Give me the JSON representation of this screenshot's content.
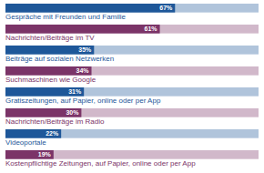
{
  "chart_data": {
    "type": "bar",
    "orientation": "horizontal",
    "categories": [
      "Gespräche mit Freunden und Familie",
      "Nachrichten/Beiträge im TV",
      "Beiträge auf sozialen Netzwerken",
      "Suchmaschinen wie Google",
      "Gratiszeitungen, auf Papier, online oder per App",
      "Nachrichten/Beiträge im Radio",
      "Videoportale",
      "Kostenpflichtige Zeitungen, auf Papier, online oder per App"
    ],
    "values": [
      67,
      61,
      35,
      34,
      31,
      30,
      22,
      19
    ],
    "value_labels": [
      "67%",
      "61%",
      "35%",
      "34%",
      "31%",
      "30%",
      "22%",
      "19%"
    ],
    "colors": [
      "#1e5799",
      "#7b3468",
      "#1e5799",
      "#7b3468",
      "#1e5799",
      "#7b3468",
      "#1e5799",
      "#7b3468"
    ],
    "xlim": [
      0,
      100
    ],
    "data_labels": true,
    "tick_labels": false
  }
}
